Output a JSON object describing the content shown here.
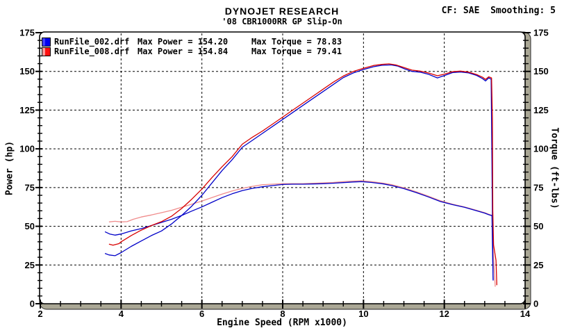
{
  "chart_data": {
    "type": "line",
    "title": "DYNOJET RESEARCH",
    "subtitle": "'08 CBR1000RR GP Slip-On",
    "correction": "CF: SAE  Smoothing: 5",
    "xlabel": "Engine Speed (RPM x1000)",
    "ylabel_left": "Power (hp)",
    "ylabel_right": "Torque (ft-lbs)",
    "xlim": [
      2,
      14
    ],
    "ylim": [
      0,
      175
    ],
    "x_major_ticks": [
      2,
      4,
      6,
      8,
      10,
      12,
      14
    ],
    "x_minor_step": 0.5,
    "y_major_ticks": [
      0,
      25,
      50,
      75,
      100,
      125,
      150,
      175
    ],
    "y_minor_step": 5,
    "grid_style": "dashed",
    "frame_color": "#aaa795",
    "legend_rows": [
      {
        "file": "RunFile_002.drf",
        "power": "Max Power = 154.20",
        "torque": "Max Torque = 78.83",
        "swatch": [
          "#4040ff",
          "#0000f0"
        ]
      },
      {
        "file": "RunFile_008.drf",
        "power": "Max Power = 154.84",
        "torque": "Max Torque = 79.41",
        "swatch": [
          "#ff9999",
          "#ff1010"
        ]
      }
    ],
    "series": [
      {
        "name": "RunFile_008.drf torque",
        "run": "RunFile_008.drf",
        "metric": "torque",
        "max_value": 79.41,
        "color": "#f08c8c",
        "points": [
          [
            3.7,
            52.8
          ],
          [
            3.85,
            53.2
          ],
          [
            4.0,
            52.8
          ],
          [
            4.15,
            53.0
          ],
          [
            4.3,
            54.5
          ],
          [
            4.5,
            56.0
          ],
          [
            4.75,
            57.3
          ],
          [
            5.0,
            58.8
          ],
          [
            5.25,
            60.3
          ],
          [
            5.5,
            62.3
          ],
          [
            5.75,
            64.3
          ],
          [
            6.0,
            66.3
          ],
          [
            6.25,
            68.5
          ],
          [
            6.5,
            70.8
          ],
          [
            6.75,
            72.8
          ],
          [
            7.0,
            74.5
          ],
          [
            7.25,
            75.8
          ],
          [
            7.5,
            76.8
          ],
          [
            7.75,
            77.2
          ],
          [
            8.0,
            77.5
          ],
          [
            8.25,
            77.5
          ],
          [
            8.5,
            77.5
          ],
          [
            8.75,
            77.8
          ],
          [
            9.0,
            78.0
          ],
          [
            9.25,
            78.3
          ],
          [
            9.5,
            78.8
          ],
          [
            9.75,
            79.2
          ],
          [
            9.95,
            79.41
          ],
          [
            10.2,
            78.8
          ],
          [
            10.5,
            77.8
          ],
          [
            10.7,
            76.8
          ],
          [
            11.0,
            74.8
          ],
          [
            11.3,
            72.3
          ],
          [
            11.6,
            69.5
          ],
          [
            11.9,
            66.5
          ],
          [
            12.2,
            64.3
          ],
          [
            12.5,
            62.5
          ],
          [
            12.8,
            60.3
          ],
          [
            13.0,
            58.8
          ],
          [
            13.1,
            57.8
          ],
          [
            13.19,
            57.0
          ],
          [
            13.21,
            35.0
          ],
          [
            13.24,
            20.0
          ],
          [
            13.26,
            11.0
          ]
        ]
      },
      {
        "name": "RunFile_002.drf torque",
        "run": "RunFile_002.drf",
        "metric": "torque",
        "max_value": 78.83,
        "color": "#0000c8",
        "points": [
          [
            3.6,
            46.5
          ],
          [
            3.72,
            45.0
          ],
          [
            3.85,
            44.3
          ],
          [
            4.0,
            45.0
          ],
          [
            4.25,
            47.0
          ],
          [
            4.5,
            48.5
          ],
          [
            4.75,
            50.5
          ],
          [
            5.0,
            52.5
          ],
          [
            5.25,
            54.5
          ],
          [
            5.5,
            57.0
          ],
          [
            5.75,
            59.8
          ],
          [
            6.0,
            62.5
          ],
          [
            6.25,
            65.5
          ],
          [
            6.5,
            68.5
          ],
          [
            6.75,
            71.0
          ],
          [
            7.0,
            73.0
          ],
          [
            7.25,
            74.5
          ],
          [
            7.5,
            75.5
          ],
          [
            7.75,
            76.3
          ],
          [
            8.0,
            77.0
          ],
          [
            8.25,
            77.2
          ],
          [
            8.5,
            77.2
          ],
          [
            8.75,
            77.3
          ],
          [
            9.0,
            77.5
          ],
          [
            9.25,
            77.8
          ],
          [
            9.5,
            78.2
          ],
          [
            9.75,
            78.6
          ],
          [
            9.95,
            78.83
          ],
          [
            10.2,
            78.3
          ],
          [
            10.5,
            77.3
          ],
          [
            10.7,
            76.3
          ],
          [
            11.0,
            74.3
          ],
          [
            11.3,
            71.8
          ],
          [
            11.6,
            69.0
          ],
          [
            11.9,
            66.0
          ],
          [
            12.2,
            64.0
          ],
          [
            12.5,
            62.3
          ],
          [
            12.8,
            60.0
          ],
          [
            13.0,
            58.5
          ],
          [
            13.1,
            57.5
          ],
          [
            13.18,
            56.8
          ],
          [
            13.19,
            40.0
          ],
          [
            13.2,
            25.0
          ],
          [
            13.21,
            15.5
          ]
        ]
      },
      {
        "name": "RunFile_002.drf power",
        "run": "RunFile_002.drf",
        "metric": "power",
        "max_value": 154.2,
        "color": "#0000c8",
        "points": [
          [
            3.6,
            32.5
          ],
          [
            3.7,
            31.5
          ],
          [
            3.85,
            31.0
          ],
          [
            4.0,
            33.0
          ],
          [
            4.25,
            37.0
          ],
          [
            4.5,
            40.5
          ],
          [
            4.75,
            44.0
          ],
          [
            5.0,
            47.0
          ],
          [
            5.25,
            51.5
          ],
          [
            5.5,
            57.0
          ],
          [
            5.75,
            63.0
          ],
          [
            6.0,
            70.0
          ],
          [
            6.25,
            78.0
          ],
          [
            6.5,
            86.0
          ],
          [
            6.75,
            93.0
          ],
          [
            7.0,
            101.0
          ],
          [
            7.25,
            105.5
          ],
          [
            7.5,
            110.0
          ],
          [
            7.75,
            114.5
          ],
          [
            8.0,
            119.0
          ],
          [
            8.25,
            123.5
          ],
          [
            8.5,
            128.0
          ],
          [
            8.75,
            132.5
          ],
          [
            9.0,
            137.0
          ],
          [
            9.25,
            141.5
          ],
          [
            9.5,
            146.0
          ],
          [
            9.75,
            149.0
          ],
          [
            10.0,
            151.2
          ],
          [
            10.25,
            153.0
          ],
          [
            10.45,
            153.9
          ],
          [
            10.68,
            154.2
          ],
          [
            10.85,
            153.4
          ],
          [
            11.0,
            151.8
          ],
          [
            11.2,
            150.0
          ],
          [
            11.4,
            149.5
          ],
          [
            11.6,
            148.2
          ],
          [
            11.83,
            145.8
          ],
          [
            12.0,
            147.3
          ],
          [
            12.2,
            149.2
          ],
          [
            12.4,
            149.6
          ],
          [
            12.6,
            149.0
          ],
          [
            12.8,
            147.4
          ],
          [
            12.95,
            145.3
          ],
          [
            13.02,
            143.8
          ],
          [
            13.1,
            145.8
          ],
          [
            13.16,
            145.0
          ],
          [
            13.18,
            90.0
          ],
          [
            13.19,
            55.0
          ],
          [
            13.2,
            30.0
          ],
          [
            13.21,
            15.0
          ]
        ]
      },
      {
        "name": "RunFile_008.drf power",
        "run": "RunFile_008.drf",
        "metric": "power",
        "max_value": 154.84,
        "color": "#d80000",
        "points": [
          [
            3.7,
            38.5
          ],
          [
            3.8,
            37.8
          ],
          [
            3.95,
            38.8
          ],
          [
            4.0,
            40.0
          ],
          [
            4.25,
            44.0
          ],
          [
            4.5,
            47.5
          ],
          [
            4.75,
            50.5
          ],
          [
            5.0,
            53.0
          ],
          [
            5.25,
            56.5
          ],
          [
            5.5,
            61.5
          ],
          [
            5.75,
            67.5
          ],
          [
            6.0,
            74.0
          ],
          [
            6.25,
            81.5
          ],
          [
            6.5,
            88.5
          ],
          [
            6.75,
            95.0
          ],
          [
            7.0,
            103.0
          ],
          [
            7.25,
            107.5
          ],
          [
            7.5,
            111.5
          ],
          [
            7.75,
            116.0
          ],
          [
            8.0,
            120.5
          ],
          [
            8.25,
            125.0
          ],
          [
            8.5,
            129.5
          ],
          [
            8.75,
            134.0
          ],
          [
            9.0,
            138.5
          ],
          [
            9.25,
            143.0
          ],
          [
            9.5,
            147.0
          ],
          [
            9.75,
            150.0
          ],
          [
            10.0,
            152.0
          ],
          [
            10.25,
            153.8
          ],
          [
            10.45,
            154.5
          ],
          [
            10.63,
            154.84
          ],
          [
            10.8,
            154.2
          ],
          [
            11.0,
            152.5
          ],
          [
            11.2,
            150.8
          ],
          [
            11.4,
            150.2
          ],
          [
            11.6,
            149.0
          ],
          [
            11.83,
            147.2
          ],
          [
            12.0,
            148.2
          ],
          [
            12.2,
            149.8
          ],
          [
            12.4,
            150.2
          ],
          [
            12.6,
            149.5
          ],
          [
            12.8,
            148.0
          ],
          [
            12.95,
            146.2
          ],
          [
            13.02,
            144.8
          ],
          [
            13.1,
            146.5
          ],
          [
            13.17,
            145.8
          ],
          [
            13.19,
            120.0
          ],
          [
            13.2,
            60.0
          ],
          [
            13.22,
            38.0
          ],
          [
            13.28,
            28.0
          ],
          [
            13.3,
            12.0
          ]
        ]
      }
    ]
  }
}
